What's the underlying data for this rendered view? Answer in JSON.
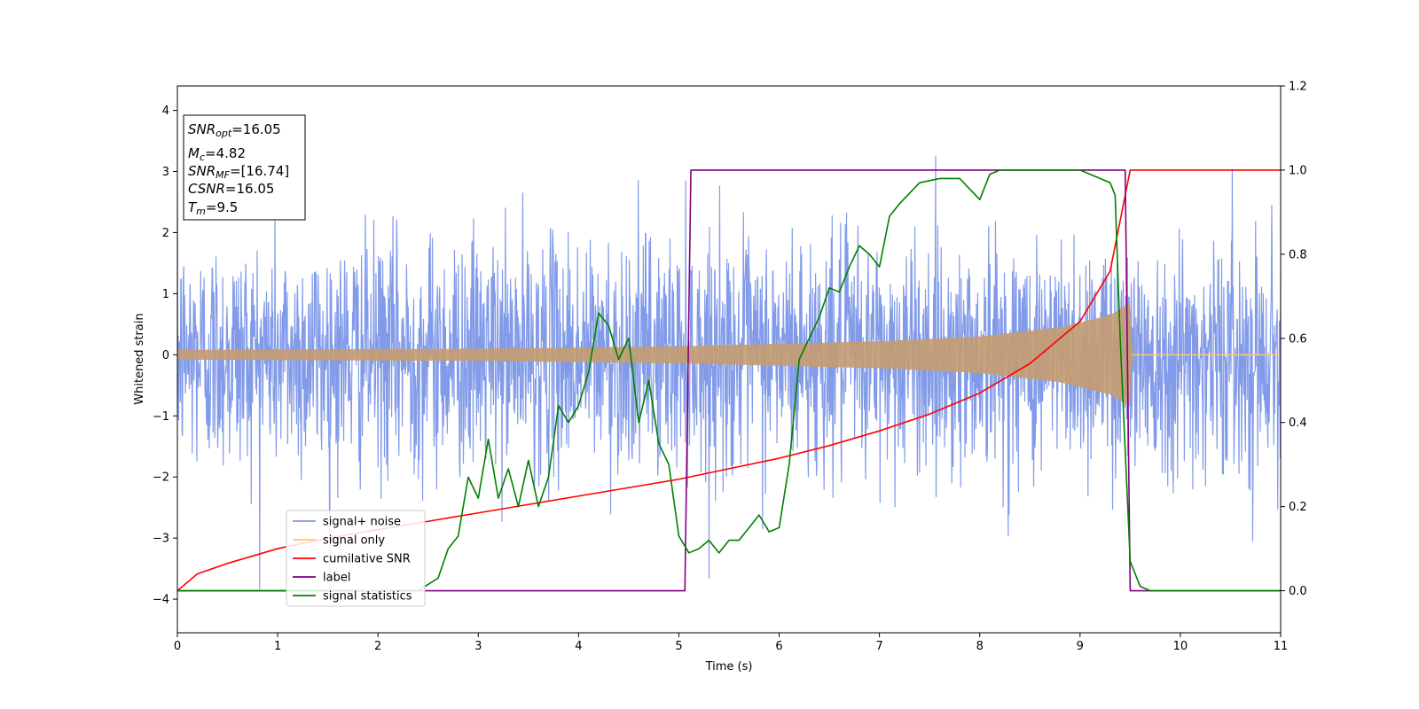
{
  "chart_data": {
    "type": "line",
    "xlabel": "Time (s)",
    "ylabel": "Whitened strain",
    "xlim": [
      0,
      11
    ],
    "ylim": [
      -4.55,
      4.4
    ],
    "y2lim": [
      -0.1,
      1.2
    ],
    "x_ticks": [
      "0",
      "1",
      "2",
      "3",
      "4",
      "5",
      "6",
      "7",
      "8",
      "9",
      "10",
      "11"
    ],
    "y_ticks": [
      "4",
      "3",
      "2",
      "1",
      "0",
      "−1",
      "−2",
      "−3",
      "−4"
    ],
    "y2_ticks": [
      "1.2",
      "1.0",
      "0.8",
      "0.6",
      "0.4",
      "0.2",
      "0.0"
    ],
    "grid": false,
    "legend_position": "lower-left",
    "info_box": {
      "snr_opt_sym": "SNR",
      "snr_opt_sub": "opt",
      "snr_opt_val": "=16.05",
      "mc_sym": "M",
      "mc_sub": "c",
      "mc_val": "=4.82",
      "snr_mf_sym": "SNR",
      "snr_mf_sub": "MF",
      "snr_mf_val": "=[16.74]",
      "csnr_sym": "CSNR",
      "csnr_val": "=16.05",
      "tm_sym": "T",
      "tm_sub": "m",
      "tm_val": "=9.5"
    },
    "series": [
      {
        "name": "signal+ noise",
        "axis": "left",
        "color": "#7b96e8",
        "description": "noise std ~1, peaks to about ±4"
      },
      {
        "name": "signal only",
        "axis": "left",
        "color": "#ffc66f",
        "envelope": [
          [
            0,
            0.08
          ],
          [
            3,
            0.1
          ],
          [
            5,
            0.14
          ],
          [
            7,
            0.22
          ],
          [
            8,
            0.3
          ],
          [
            8.8,
            0.45
          ],
          [
            9.3,
            0.65
          ],
          [
            9.5,
            0.85
          ],
          [
            9.52,
            0.0
          ],
          [
            11,
            0.0
          ]
        ]
      },
      {
        "name": "cumilative SNR",
        "axis": "right",
        "color": "#ff0000",
        "x": [
          0,
          0.2,
          0.5,
          1,
          1.5,
          2,
          2.5,
          3,
          3.5,
          4,
          4.5,
          5,
          5.5,
          6,
          6.5,
          7,
          7.5,
          8,
          8.5,
          9,
          9.3,
          9.5,
          9.5,
          11
        ],
        "y": [
          0.0,
          0.04,
          0.065,
          0.1,
          0.125,
          0.145,
          0.165,
          0.185,
          0.205,
          0.225,
          0.245,
          0.265,
          0.29,
          0.315,
          0.345,
          0.38,
          0.42,
          0.47,
          0.54,
          0.64,
          0.76,
          1.0,
          1.0,
          1.0
        ]
      },
      {
        "name": "label",
        "axis": "right",
        "color": "#800080",
        "x": [
          0,
          5.06,
          5.12,
          9.45,
          9.5,
          11
        ],
        "y": [
          0.0,
          0.0,
          1.0,
          1.0,
          0.0,
          0.0
        ]
      },
      {
        "name": "signal statistics",
        "axis": "right",
        "color": "#008000",
        "x": [
          0,
          2.4,
          2.6,
          2.7,
          2.8,
          2.9,
          3.0,
          3.1,
          3.2,
          3.3,
          3.4,
          3.5,
          3.6,
          3.7,
          3.8,
          3.9,
          4.0,
          4.1,
          4.2,
          4.3,
          4.4,
          4.5,
          4.6,
          4.7,
          4.8,
          4.9,
          5.0,
          5.1,
          5.2,
          5.3,
          5.4,
          5.5,
          5.6,
          5.7,
          5.8,
          5.9,
          6.0,
          6.1,
          6.2,
          6.3,
          6.4,
          6.5,
          6.6,
          6.7,
          6.8,
          6.9,
          7.0,
          7.1,
          7.2,
          7.4,
          7.6,
          7.8,
          8.0,
          8.1,
          8.2,
          8.4,
          8.6,
          8.8,
          9.0,
          9.2,
          9.3,
          9.35,
          9.4,
          9.5,
          9.6,
          9.7,
          11
        ],
        "y": [
          0.0,
          0.0,
          0.03,
          0.1,
          0.13,
          0.27,
          0.22,
          0.36,
          0.22,
          0.29,
          0.2,
          0.31,
          0.2,
          0.27,
          0.44,
          0.4,
          0.44,
          0.52,
          0.66,
          0.63,
          0.55,
          0.6,
          0.4,
          0.5,
          0.35,
          0.3,
          0.13,
          0.09,
          0.1,
          0.12,
          0.09,
          0.12,
          0.12,
          0.15,
          0.18,
          0.14,
          0.15,
          0.3,
          0.55,
          0.6,
          0.65,
          0.72,
          0.71,
          0.77,
          0.82,
          0.8,
          0.77,
          0.89,
          0.92,
          0.97,
          0.98,
          0.98,
          0.93,
          0.99,
          1.0,
          1.0,
          1.0,
          1.0,
          1.0,
          0.98,
          0.97,
          0.94,
          0.6,
          0.07,
          0.01,
          0.0,
          0.0
        ]
      }
    ]
  }
}
